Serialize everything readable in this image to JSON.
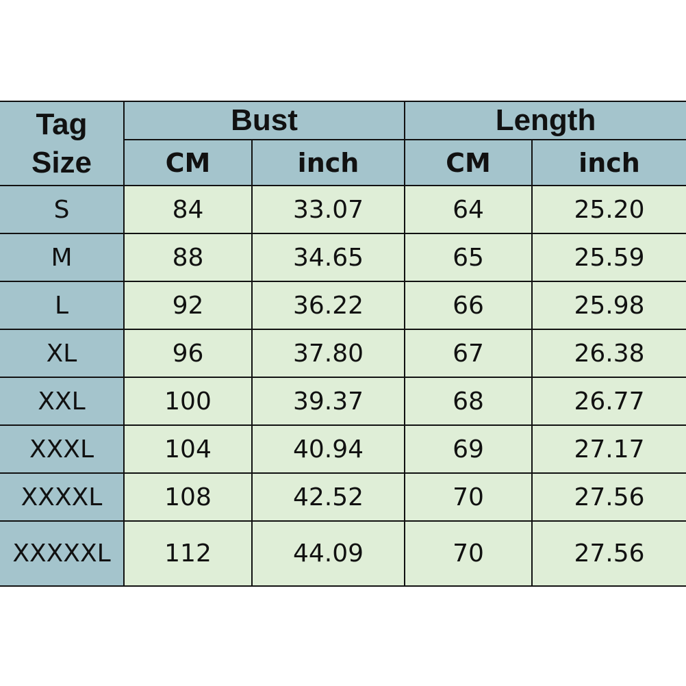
{
  "headers": {
    "tag_size": "Tag Size",
    "bust": "Bust",
    "length": "Length",
    "cm": "CM",
    "inch": "inch"
  },
  "rows": [
    {
      "size": "S",
      "bust_cm": "84",
      "bust_inch": "33.07",
      "length_cm": "64",
      "length_inch": "25.20"
    },
    {
      "size": "M",
      "bust_cm": "88",
      "bust_inch": "34.65",
      "length_cm": "65",
      "length_inch": "25.59"
    },
    {
      "size": "L",
      "bust_cm": "92",
      "bust_inch": "36.22",
      "length_cm": "66",
      "length_inch": "25.98"
    },
    {
      "size": "XL",
      "bust_cm": "96",
      "bust_inch": "37.80",
      "length_cm": "67",
      "length_inch": "26.38"
    },
    {
      "size": "XXL",
      "bust_cm": "100",
      "bust_inch": "39.37",
      "length_cm": "68",
      "length_inch": "26.77"
    },
    {
      "size": "XXXL",
      "bust_cm": "104",
      "bust_inch": "40.94",
      "length_cm": "69",
      "length_inch": "27.17"
    },
    {
      "size": "XXXXL",
      "bust_cm": "108",
      "bust_inch": "42.52",
      "length_cm": "70",
      "length_inch": "27.56"
    },
    {
      "size": "XXXXXL",
      "bust_cm": "112",
      "bust_inch": "44.09",
      "length_cm": "70",
      "length_inch": "27.56"
    }
  ],
  "colors": {
    "header": "#a4c4cc",
    "cell": "#dfeed7",
    "border": "#111111"
  }
}
